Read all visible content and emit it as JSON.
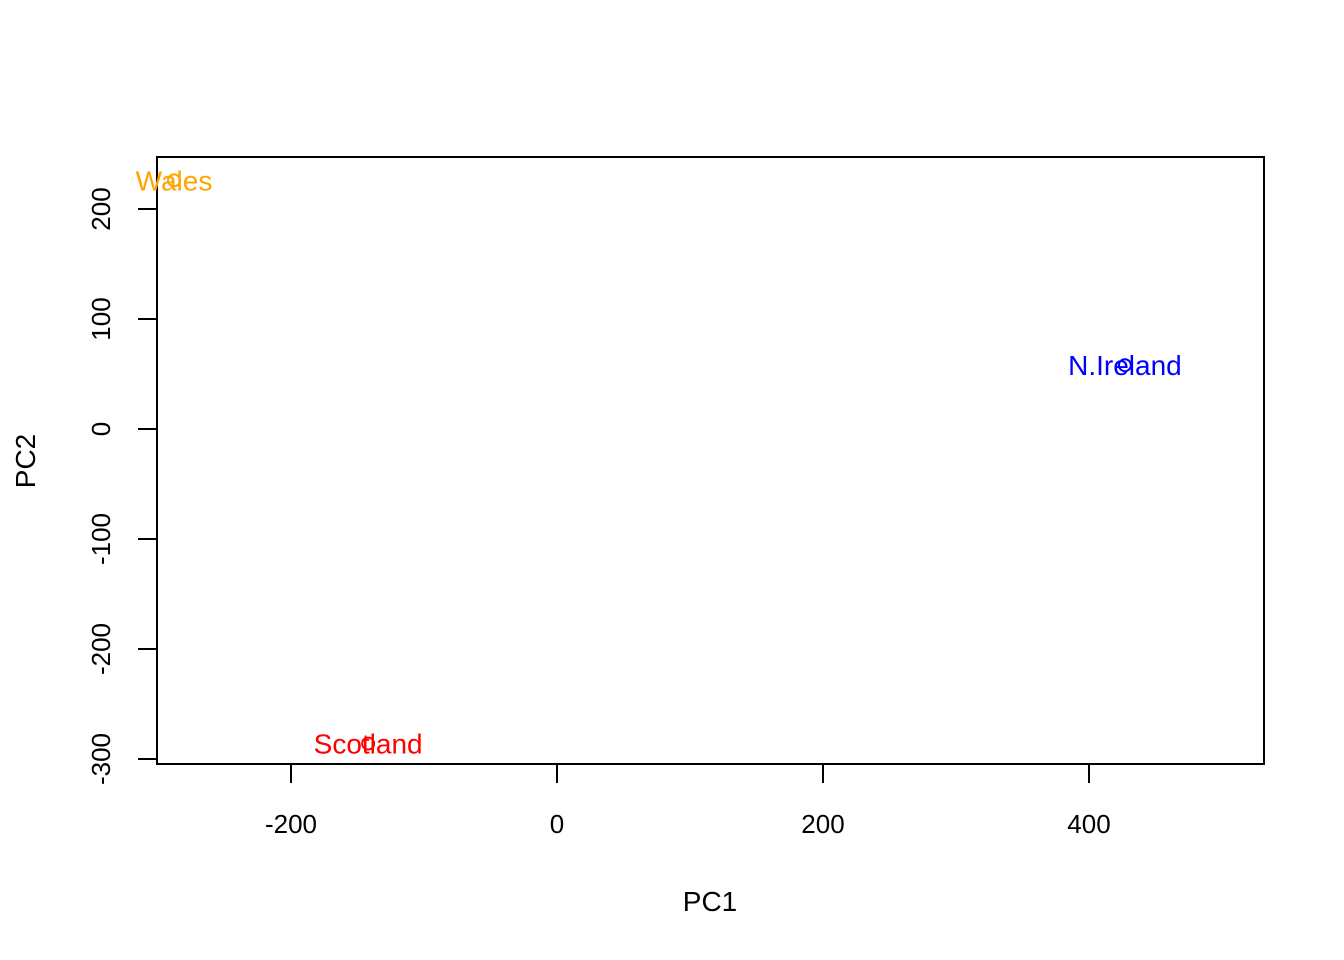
{
  "chart_data": {
    "type": "scatter",
    "title": "",
    "xlabel": "PC1",
    "ylabel": "PC2",
    "xlim": [
      -300,
      500
    ],
    "ylim": [
      -300,
      200
    ],
    "xticks": [
      "-200",
      "0",
      "200",
      "400"
    ],
    "yticks": [
      "-300",
      "-200",
      "-100",
      "0",
      "100",
      "200"
    ],
    "grid": false,
    "points": [
      {
        "label": "Wales",
        "x": -288,
        "y": 226,
        "color": "#FFA500"
      },
      {
        "label": "Scotland",
        "x": -142,
        "y": -286,
        "color": "#FF0000"
      },
      {
        "label": "N.Ireland",
        "x": 427,
        "y": 58,
        "color": "#0000FF"
      }
    ]
  }
}
